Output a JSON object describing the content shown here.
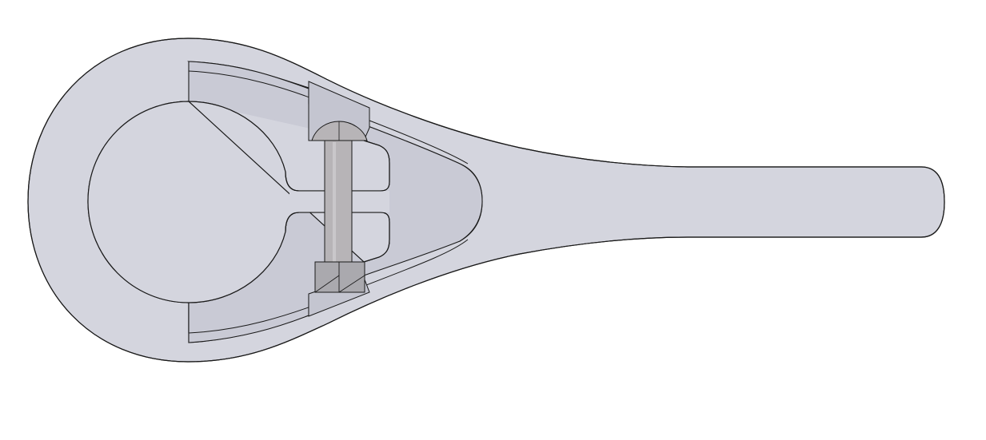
{
  "drawing": {
    "view": "top",
    "parts": [
      {
        "id": "clamp-body",
        "name": "clamp-lever-body"
      },
      {
        "id": "clamp-insert",
        "name": "clamp-insert-piece"
      },
      {
        "id": "bolt-shaft",
        "name": "bolt-shaft"
      },
      {
        "id": "bolt-head",
        "name": "round-bolt-head"
      },
      {
        "id": "hex-nut",
        "name": "hex-nut"
      },
      {
        "id": "pivot-bore",
        "name": "pivot-bore"
      }
    ],
    "colors": {
      "background": "#ffffff",
      "body_fill": "#d4d5de",
      "insert_fill": "#c8c9d4",
      "bolt_fill": "#b7b4b7",
      "nut_fill": "#aaa9ae",
      "outline": "#1a1a1a"
    }
  }
}
